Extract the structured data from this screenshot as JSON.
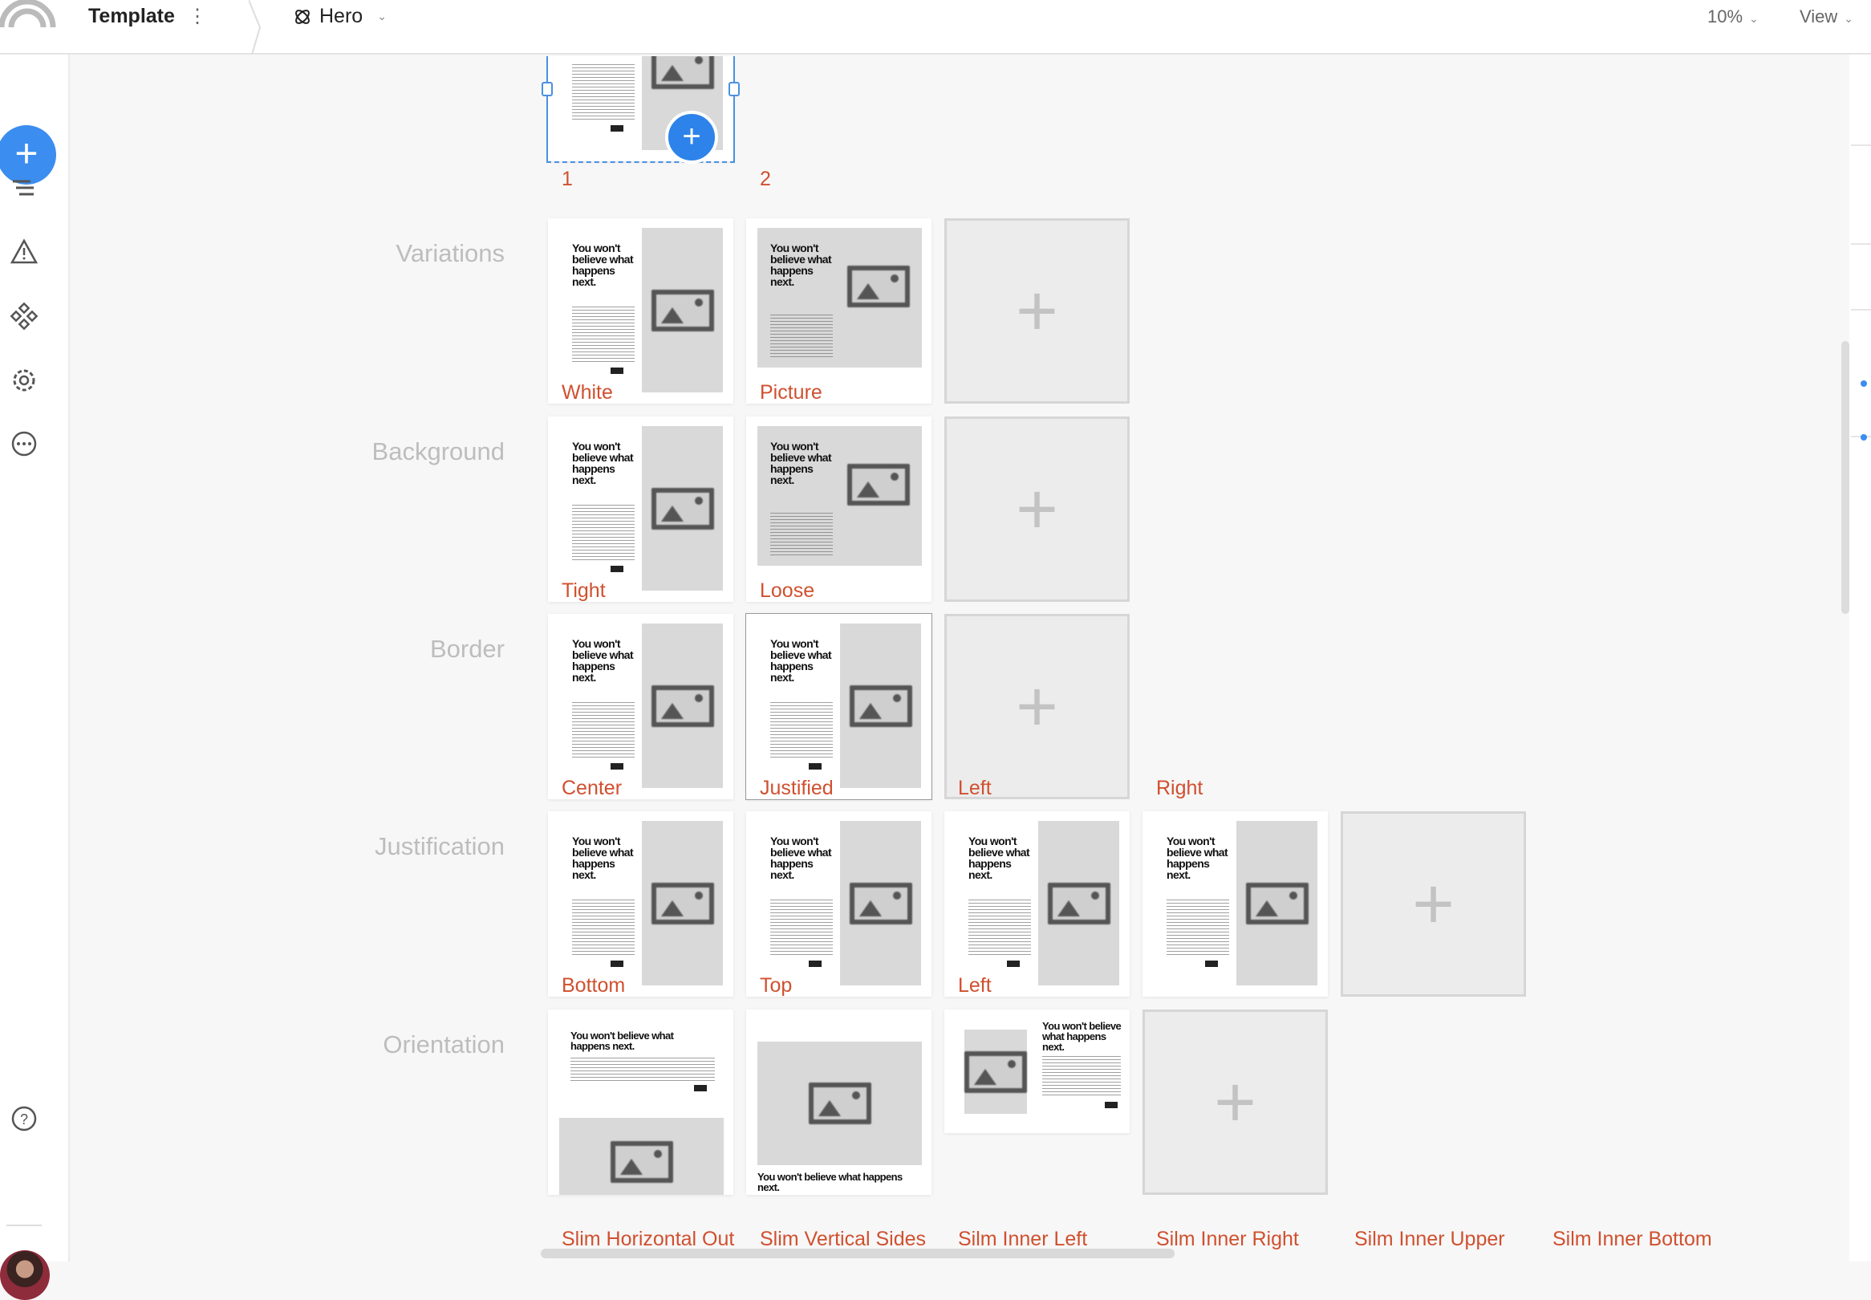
{
  "topbar": {
    "title": "Template",
    "menu_icon": "vertical-dots-icon",
    "component_icon": "component-icon",
    "component": "Hero",
    "zoom": "10%",
    "view": "View"
  },
  "sidebar": {
    "items": [
      "add-icon",
      "layers-icon",
      "warning-icon",
      "components-icon",
      "settings-icon",
      "more-icon",
      "help-icon",
      "avatar"
    ]
  },
  "colors": {
    "accent": "#3b8df0",
    "label": "#d0502f"
  },
  "thumbnail": {
    "headline": "You won't believe what happens next."
  },
  "rows": [
    {
      "label": "",
      "cards": [
        {
          "type": "std-top",
          "label": "1",
          "selected": true
        },
        {
          "type": "none",
          "label": "2"
        }
      ]
    },
    {
      "label": "Variations",
      "cards": [
        {
          "type": "std",
          "label": "White"
        },
        {
          "type": "picture",
          "label": "Picture"
        },
        {
          "type": "add",
          "label": ""
        }
      ]
    },
    {
      "label": "Background",
      "cards": [
        {
          "type": "std",
          "label": "Tight"
        },
        {
          "type": "picture",
          "label": "Loose"
        },
        {
          "type": "add",
          "label": ""
        }
      ]
    },
    {
      "label": "Border",
      "cards": [
        {
          "type": "std",
          "label": "Center"
        },
        {
          "type": "bordered",
          "label": "Justified"
        },
        {
          "type": "add",
          "label": "Left"
        },
        {
          "type": "none",
          "label": "Right"
        }
      ]
    },
    {
      "label": "Justification",
      "cards": [
        {
          "type": "std",
          "label": "Bottom"
        },
        {
          "type": "std",
          "label": "Top"
        },
        {
          "type": "std",
          "label": "Left"
        },
        {
          "type": "std",
          "label": ""
        },
        {
          "type": "add",
          "label": ""
        }
      ]
    },
    {
      "label": "Orientation",
      "cards": [
        {
          "type": "text-top",
          "label": "Slim Horizontal Out"
        },
        {
          "type": "image-top",
          "label": "Slim Vertical Sides"
        },
        {
          "type": "inner-left",
          "label": "Silm Inner Left"
        },
        {
          "type": "add",
          "label": "Silm Inner Right"
        },
        {
          "type": "none",
          "label": "Silm Inner Upper"
        },
        {
          "type": "none",
          "label": "Silm Inner Bottom"
        }
      ]
    }
  ]
}
